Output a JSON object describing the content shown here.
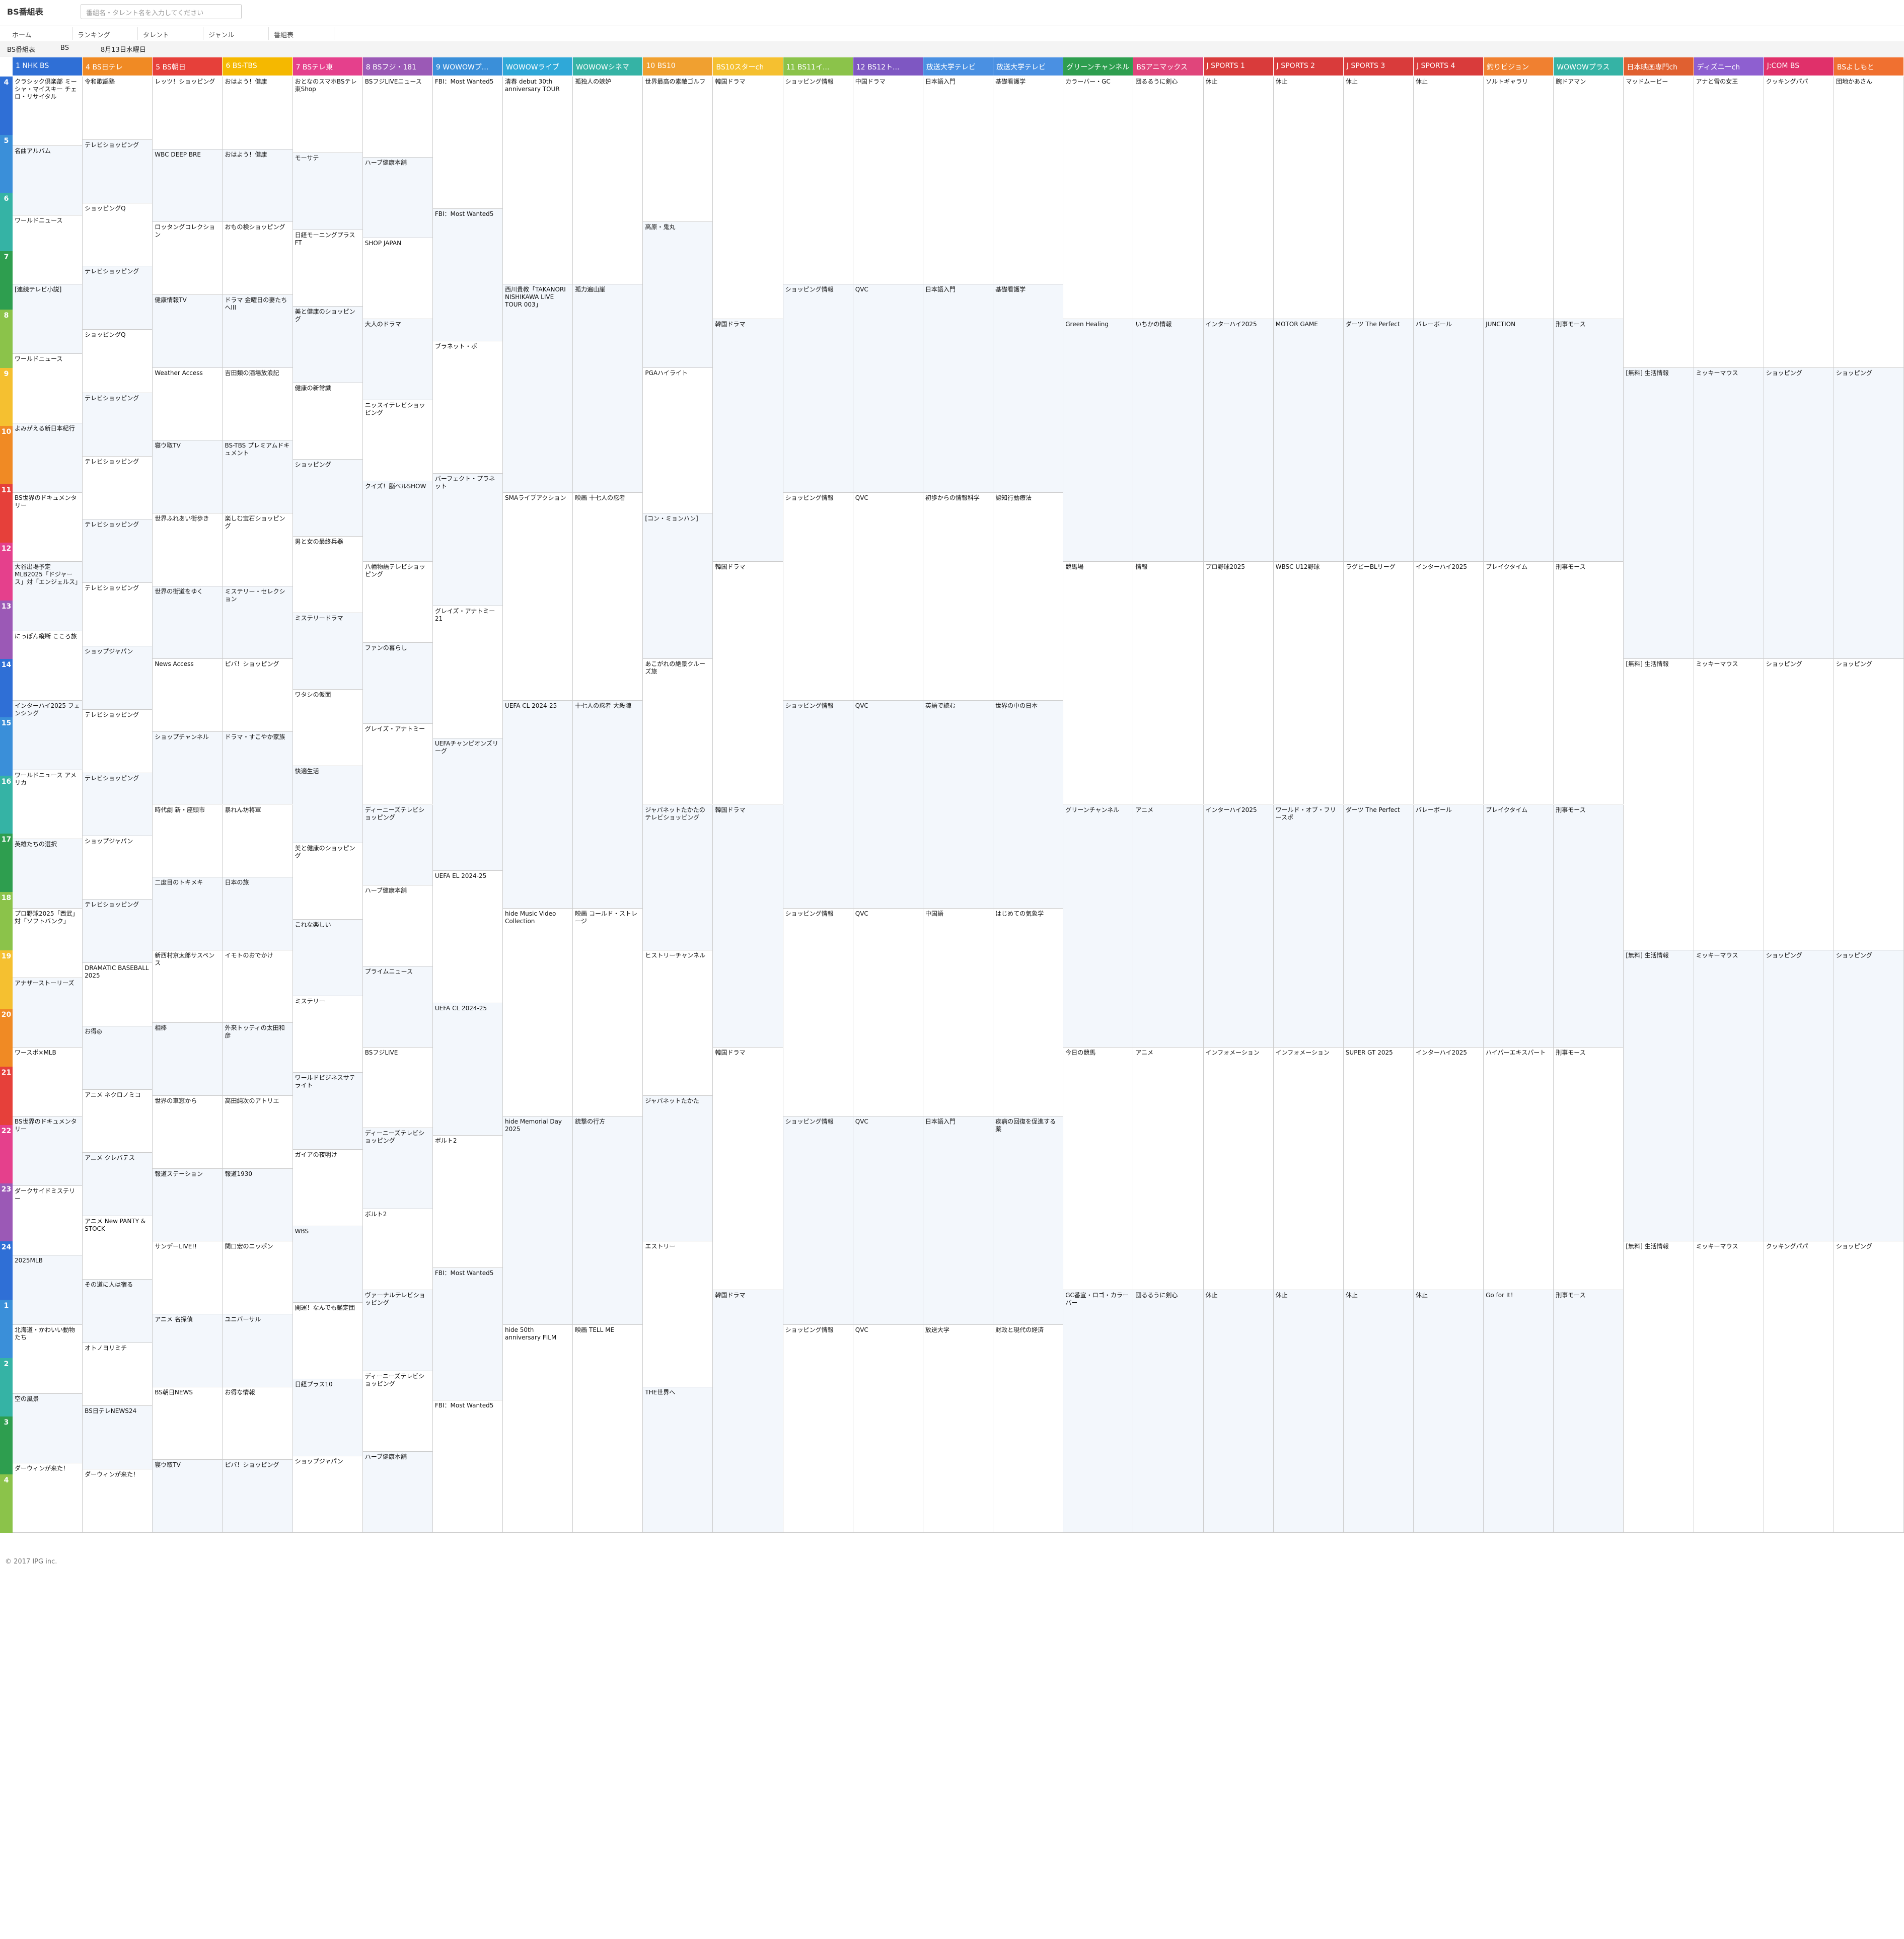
{
  "header": {
    "logo": "BS番組表",
    "search_placeholder": "番組名・タレント名を入力してください",
    "tabs": [
      "ホーム",
      "ランキング",
      "タレント",
      "ジャンル",
      "番組表"
    ]
  },
  "subbar": {
    "guide": "BS番組表",
    "band": "BS",
    "date": "8月13日水曜日"
  },
  "hours": [
    4,
    5,
    6,
    7,
    8,
    9,
    10,
    11,
    12,
    13,
    14,
    15,
    16,
    17,
    18,
    19,
    20,
    21,
    22,
    23,
    24,
    1,
    2,
    3,
    4
  ],
  "channels": [
    {
      "name": "1 NHK BS",
      "color": "#2f6fd6",
      "programs": [
        "クラシック倶楽部 ミーシャ・マイスキー チェロ・リサイタル",
        "名曲アルバム",
        "ワールドニュース",
        "[連続テレビ小説]",
        "ワールドニュース",
        "よみがえる新日本紀行",
        "BS世界のドキュメンタリー",
        "大谷出場予定 MLB2025「ドジャース」対「エンジェルス」",
        "にっぽん縦断 こころ旅",
        "インターハイ2025 フェンシング",
        "ワールドニュース アメリカ",
        "英雄たちの選択",
        "プロ野球2025「西武」対「ソフトバンク」",
        "アナザーストーリーズ",
        "ワースポ×MLB",
        "BS世界のドキュメンタリー",
        "ダークサイドミステリー",
        "2025MLB",
        "北海道・かわいい動物たち",
        "空の風景",
        "ダーウィンが来た！"
      ]
    },
    {
      "name": "4 BS日テレ",
      "color": "#f08a24",
      "programs": [
        "令和歌謡塾",
        "テレビショッピング",
        "ショッピングQ",
        "テレビショッピング",
        "ショッピングQ",
        "テレビショッピング",
        "テレビショッピング",
        "テレビショッピング",
        "テレビショッピング",
        "ショップジャパン",
        "テレビショッピング",
        "テレビショッピング",
        "ショップジャパン",
        "テレビショッピング",
        "DRAMATIC BASEBALL 2025",
        "お得◎",
        "アニメ ネクロノミコ",
        "アニメ クレバテス",
        "アニメ New PANTY & STOCK",
        "その道に人は宿る",
        "オトノヨリミチ",
        "BS日テレNEWS24",
        "ダーウィンが来た！"
      ]
    },
    {
      "name": "5 BS朝日",
      "color": "#e6403a",
      "programs": [
        "レッツ！ショッピング",
        "WBC DEEP BRE",
        "ロッタングコレクション",
        "健康情報TV",
        "Weather Access",
        "寝ウ取TV",
        "世界ふれあい街歩き",
        "世界の街道をゆく",
        "News Access",
        "ショップチャンネル",
        "時代劇 新・座頭市",
        "二度目のトキメキ",
        "新西村京太郎サスペンス",
        "相棒",
        "世界の車窓から",
        "報道ステーション",
        "サンデーLIVE!!",
        "アニメ 名探偵",
        "BS朝日NEWS",
        "寝ウ取TV"
      ]
    },
    {
      "name": "6 BS-TBS",
      "color": "#f5b800",
      "programs": [
        "おはよう！健康",
        "おはよう！健康",
        "おもの検ショッピング",
        "ドラマ 金曜日の妻たちへIII",
        "吉田類の酒場放浪記",
        "BS-TBS プレミアムドキュメント",
        "楽しむ宝石ショッピング",
        "ミステリー・セレクション",
        "ピバ！ショッピング",
        "ドラマ・すこやか家族",
        "暴れん坊将軍",
        "日本の旅",
        "イモトのおでかけ",
        "外来トッティの太田和彦",
        "高田純次のアトリエ",
        "報道1930",
        "関口宏のニッポン",
        "ユニバーサル",
        "お得な情報",
        "ピバ！ショッピング"
      ]
    },
    {
      "name": "7 BSテレ東",
      "color": "#e5408c",
      "programs": [
        "おとなのスマホBSテレ東Shop",
        "モーサテ",
        "日経モーニングプラスFT",
        "美と健康のショッピング",
        "健康の新常識",
        "ショッピング",
        "男と女の最終兵器",
        "ミステリードラマ",
        "ワタシの仮面",
        "快適生活",
        "美と健康のショッピング",
        "これな楽しい",
        "ミステリー",
        "ワールドビジネスサテライト",
        "ガイアの夜明け",
        "WBS",
        "開運！なんでも鑑定団",
        "日経プラス10",
        "ショップジャパン"
      ]
    },
    {
      "name": "8 BSフジ・181",
      "color": "#9b59b6",
      "programs": [
        "BSフジLIVEニュース",
        "ハーブ健康本舗",
        "SHOP JAPAN",
        "大人のドラマ",
        "ニッスイテレビショッピング",
        "クイズ！脳ベルSHOW",
        "八幡物語テレビショッピング",
        "ファンの暮らし",
        "グレイズ・アナトミー",
        "ディーニーズテレビショッピング",
        "ハーブ健康本舗",
        "プライムニュース",
        "BSフジLIVE",
        "ディーニーズテレビショッピング",
        "ボルト2",
        "ヴァーナルテレビショッピング",
        "ディーニーズテレビショッピング",
        "ハーブ健康本舗"
      ]
    },
    {
      "name": "9 WOWOWプ...",
      "color": "#3a8fd9",
      "programs": [
        "FBI：Most Wanted5",
        "FBI：Most Wanted5",
        "ブラネット・ボ",
        "パーフェクト・プラネット",
        "グレイズ・アナトミー21",
        "UEFAチャンピオンズリーグ",
        "UEFA EL 2024-25",
        "UEFA CL 2024-25",
        "ボルト2",
        "FBI：Most Wanted5",
        "FBI：Most Wanted5"
      ]
    },
    {
      "name": "WOWOWライブ",
      "color": "#2fa8d8",
      "programs": [
        "清春 debut 30th anniversary TOUR",
        "西川貴教「TAKANORI NISHIKAWA LIVE TOUR 003」",
        "SMAライブアクション",
        "UEFA CL 2024-25",
        "hide Music Video Collection",
        "hide Memorial Day 2025",
        "hide 50th anniversary FILM"
      ]
    },
    {
      "name": "WOWOWシネマ",
      "color": "#35b3a5",
      "programs": [
        "孤独人の嫉妒",
        "孤力遍山崖",
        "映画 十七人の忍者",
        "十七人の忍者 大殺陣",
        "映画 コールド・ストレージ",
        "銃撃の行方",
        "映画 TELL ME"
      ]
    },
    {
      "name": "10 BS10",
      "color": "#f0a030",
      "programs": [
        "世界最高の素敵ゴルフ",
        "高原・鬼丸",
        "PGAハイライト",
        "[コン・ミョンハン]",
        "あこがれの絶景クルーズ旅",
        "ジャパネットたかたのテレビショッピング",
        "ヒストリーチャンネル",
        "ジャパネットたかた",
        "エストリー",
        "THE世界へ"
      ]
    },
    {
      "name": "BS10スターch",
      "color": "#f5c030",
      "programs": [
        "韓国ドラマ",
        "韓国ドラマ",
        "韓国ドラマ",
        "韓国ドラマ",
        "韓国ドラマ",
        "韓国ドラマ"
      ]
    },
    {
      "name": "11 BS11イ...",
      "color": "#8bc34a",
      "programs": [
        "ショッピング情報",
        "ショッピング情報",
        "ショッピング情報",
        "ショッピング情報",
        "ショッピング情報",
        "ショッピング情報",
        "ショッピング情報"
      ]
    },
    {
      "name": "12 BS12ト...",
      "color": "#7e57c2",
      "programs": [
        "中国ドラマ",
        "QVC",
        "QVC",
        "QVC",
        "QVC",
        "QVC",
        "QVC"
      ]
    },
    {
      "name": "放送大学テレビ",
      "color": "#4a90e2",
      "programs": [
        "日本語入門",
        "日本語入門",
        "初歩からの情報科学",
        "英語で読む",
        "中国語",
        "日本語入門",
        "放送大学"
      ]
    },
    {
      "name": "放送大学テレビ",
      "color": "#4a90e2",
      "programs": [
        "基礎看護学",
        "基礎看護学",
        "認知行動療法",
        "世界の中の日本",
        "はじめての気象学",
        "疾病の回復を促進する薬",
        "財政と現代の経済"
      ]
    },
    {
      "name": "グリーンチャンネル",
      "color": "#2e9e4f",
      "programs": [
        "カラーバー・GC",
        "Green Healing",
        "競馬場",
        "グリーンチャンネル",
        "今日の競馬",
        "GC番宣・ロゴ・カラーバー"
      ]
    },
    {
      "name": "BSアニマックス",
      "color": "#e0457b",
      "programs": [
        "団るるうに剣心",
        "いちかの情報",
        "情報",
        "アニメ",
        "アニメ",
        "団るるうに剣心"
      ]
    },
    {
      "name": "J SPORTS 1",
      "color": "#d93b3b",
      "programs": [
        "休止",
        "インターハイ2025",
        "プロ野球2025",
        "インターハイ2025",
        "インフォメーション",
        "休止"
      ]
    },
    {
      "name": "J SPORTS 2",
      "color": "#d93b3b",
      "programs": [
        "休止",
        "MOTOR GAME",
        "WBSC U12野球",
        "ワールド・オブ・フリースポ",
        "インフォメーション",
        "休止"
      ]
    },
    {
      "name": "J SPORTS 3",
      "color": "#d93b3b",
      "programs": [
        "休止",
        "ダーツ The Perfect",
        "ラグビーBLリーグ",
        "ダーツ The Perfect",
        "SUPER GT 2025",
        "休止"
      ]
    },
    {
      "name": "J SPORTS 4",
      "color": "#d93b3b",
      "programs": [
        "休止",
        "バレーボール",
        "インターハイ2025",
        "バレーボール",
        "インターハイ2025",
        "休止"
      ]
    },
    {
      "name": "釣りビジョン",
      "color": "#f08030",
      "programs": [
        "ソルトギャラリ",
        "JUNCTION",
        "ブレイクタイム",
        "ブレイクタイム",
        "ハイパーエキスパート",
        "Go for It！"
      ]
    },
    {
      "name": "WOWOWプラス",
      "color": "#35b3a5",
      "programs": [
        "腕ドアマン",
        "刑事モース",
        "刑事モース",
        "刑事モース",
        "刑事モース",
        "刑事モース"
      ]
    },
    {
      "name": "日本映画専門ch",
      "color": "#e06030",
      "programs": [
        "マッドムービー",
        "[無料] 生活情報",
        "[無料] 生活情報",
        "[無料] 生活情報",
        "[無料] 生活情報"
      ]
    },
    {
      "name": "ディズニーch",
      "color": "#8e5fd0",
      "programs": [
        "アナと雪の女王",
        "ミッキーマウス",
        "ミッキーマウス",
        "ミッキーマウス",
        "ミッキーマウス"
      ]
    },
    {
      "name": "J:COM BS",
      "color": "#e0306a",
      "programs": [
        "クッキングパパ",
        "ショッピング",
        "ショッピング",
        "ショッピング",
        "クッキングパパ"
      ]
    },
    {
      "name": "BSよしもと",
      "color": "#f07030",
      "programs": [
        "団地かあさん",
        "ショッピング",
        "ショッピング",
        "ショッピング",
        "ショッピング"
      ]
    }
  ],
  "footer": "© 2017 IPG inc."
}
